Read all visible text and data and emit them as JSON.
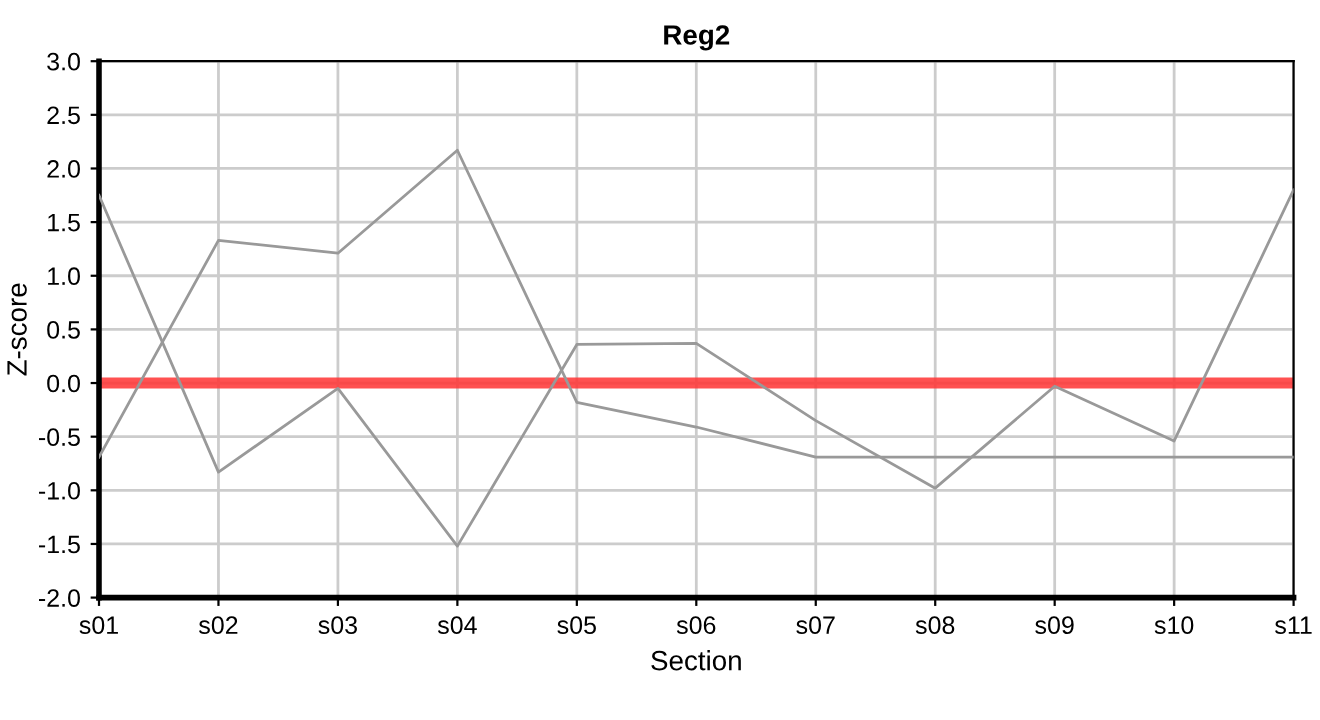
{
  "chart_data": {
    "type": "line",
    "title": "Reg2",
    "xlabel": "Section",
    "ylabel": "Z-score",
    "categories": [
      "s01",
      "s02",
      "s03",
      "s04",
      "s05",
      "s06",
      "s07",
      "s08",
      "s09",
      "s10",
      "s11"
    ],
    "series": [
      {
        "color": "#999999",
        "values": [
          1.75,
          -0.83,
          -0.05,
          -1.52,
          0.36,
          0.37,
          -0.35,
          -0.98,
          -0.03,
          -0.54,
          1.8
        ]
      },
      {
        "color": "#999999",
        "values": [
          -0.69,
          1.33,
          1.21,
          2.17,
          -0.18,
          -0.41,
          -0.69,
          -0.69,
          -0.69,
          -0.69,
          -0.69
        ]
      }
    ],
    "ylim": [
      -2.0,
      3.0
    ],
    "yticks": [
      {
        "value": -2.0,
        "label": "-2.0"
      },
      {
        "value": -1.5,
        "label": "-1.5"
      },
      {
        "value": -1.0,
        "label": "-1.0"
      },
      {
        "value": -0.5,
        "label": "-0.5"
      },
      {
        "value": 0.0,
        "label": "0.0"
      },
      {
        "value": 0.5,
        "label": "0.5"
      },
      {
        "value": 1.0,
        "label": "1.0"
      },
      {
        "value": 1.5,
        "label": "1.5"
      },
      {
        "value": 2.0,
        "label": "2.0"
      },
      {
        "value": 2.5,
        "label": "2.5"
      },
      {
        "value": 3.0,
        "label": "3.0"
      }
    ],
    "ref_lines": [
      {
        "axis": "y",
        "value": 0,
        "label": null,
        "color": "#ff3333"
      }
    ],
    "grid": true,
    "marker": "none",
    "line_style": "solid"
  }
}
